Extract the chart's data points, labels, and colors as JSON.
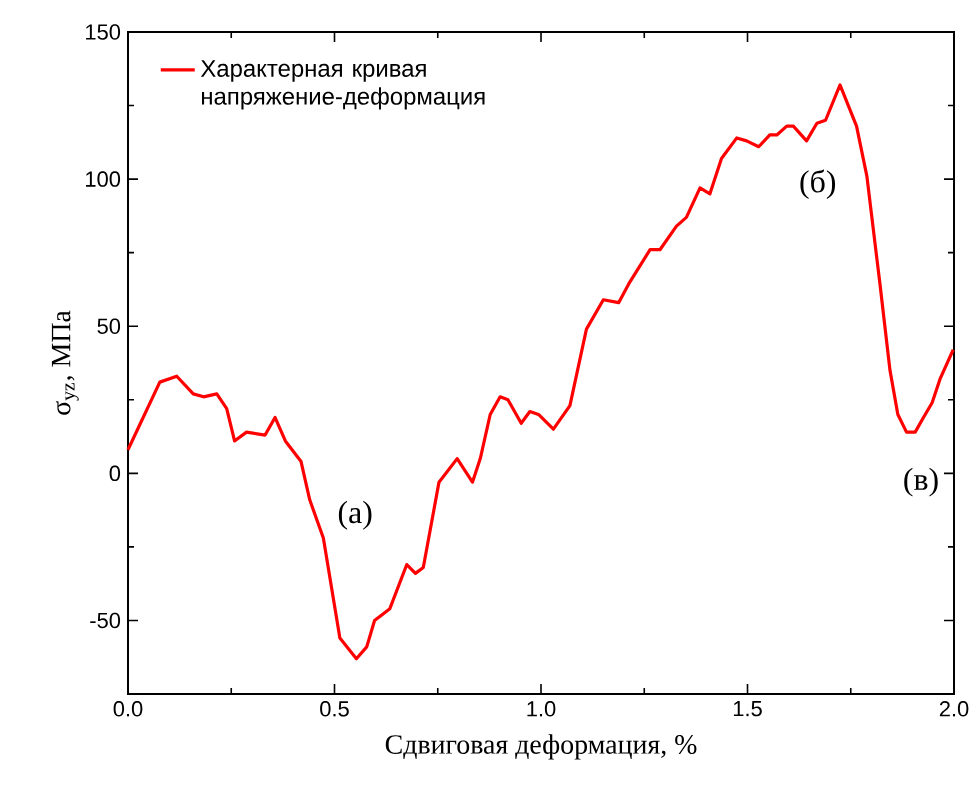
{
  "chart_data": {
    "type": "line",
    "xlabel": "Сдвиговая деформация, %",
    "ylabel": "σ$_{yz}$, МПа",
    "xlim": [
      0,
      2
    ],
    "xticks": [
      {
        "value": 0,
        "label": "0.0"
      },
      0.5,
      {
        "value": 1,
        "label": "1.0"
      },
      1.5,
      {
        "value": 2,
        "label": "2.0"
      }
    ],
    "ylim": [
      -75,
      150
    ],
    "yticks": [
      -50,
      0,
      50,
      100,
      150
    ],
    "legend": "top left",
    "grid": false,
    "annotations": [
      "(а)",
      "(б)",
      "(в)"
    ],
    "series": [
      {
        "name": "Характерная кривая напряжение-деформация",
        "color": "#ff0000",
        "x": [
          0.0,
          0.077,
          0.118,
          0.158,
          0.183,
          0.215,
          0.239,
          0.258,
          0.287,
          0.332,
          0.356,
          0.381,
          0.419,
          0.44,
          0.473,
          0.513,
          0.553,
          0.578,
          0.597,
          0.634,
          0.675,
          0.696,
          0.715,
          0.753,
          0.797,
          0.834,
          0.853,
          0.877,
          0.901,
          0.92,
          0.952,
          0.973,
          0.994,
          1.03,
          1.07,
          1.11,
          1.151,
          1.188,
          1.215,
          1.264,
          1.288,
          1.328,
          1.352,
          1.385,
          1.409,
          1.437,
          1.474,
          1.498,
          1.527,
          1.554,
          1.571,
          1.595,
          1.611,
          1.643,
          1.668,
          1.689,
          1.724,
          1.764,
          1.789,
          1.821,
          1.845,
          1.864,
          1.885,
          1.906,
          1.926,
          1.947,
          1.966,
          1.998
        ],
        "values": [
          8,
          31,
          33,
          27,
          26,
          27,
          22,
          11,
          14,
          13,
          19,
          11,
          4,
          -9,
          -22,
          -56,
          -63,
          -59,
          -50,
          -46,
          -31,
          -34,
          -32,
          -3,
          5,
          -3,
          5,
          20,
          26,
          25,
          17,
          21,
          20,
          15,
          23,
          49,
          59,
          58,
          65,
          76,
          76,
          84,
          87,
          97,
          95,
          107,
          114,
          113,
          111,
          115,
          115,
          118,
          118,
          113,
          119,
          120,
          132,
          118,
          101,
          64,
          35,
          20,
          14,
          14,
          19,
          24,
          32,
          42
        ]
      }
    ]
  }
}
